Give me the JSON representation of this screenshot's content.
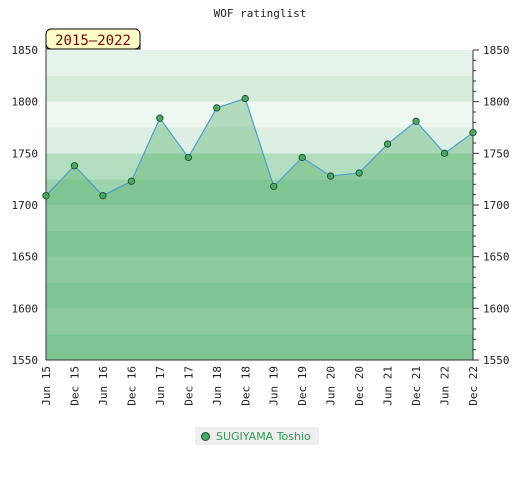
{
  "chart_data": {
    "type": "area",
    "title": "WOF ratinglist",
    "period_badge": "2015–2022",
    "x": [
      "Jun 15",
      "Dec 15",
      "Jun 16",
      "Dec 16",
      "Jun 17",
      "Dec 17",
      "Jun 18",
      "Dec 18",
      "Jun 19",
      "Dec 19",
      "Jun 20",
      "Dec 20",
      "Jun 21",
      "Dec 21",
      "Jun 22",
      "Dec 22"
    ],
    "series": [
      {
        "name": "SUGIYAMA Toshio",
        "values": [
          1709,
          1738,
          1709,
          1723,
          1784,
          1746,
          1794,
          1803,
          1718,
          1746,
          1728,
          1731,
          1759,
          1781,
          1750,
          1770
        ]
      }
    ],
    "y_ticks": [
      "1550",
      "1600",
      "1650",
      "1700",
      "1750",
      "1800",
      "1850"
    ],
    "ylim": [
      1550,
      1850
    ],
    "legend_position": "bottom",
    "colors": {
      "line": "#4f9fd0",
      "marker_fill": "#4aa866",
      "marker_edge": "#1f4f2c",
      "legend_text": "#2e9a52"
    }
  }
}
